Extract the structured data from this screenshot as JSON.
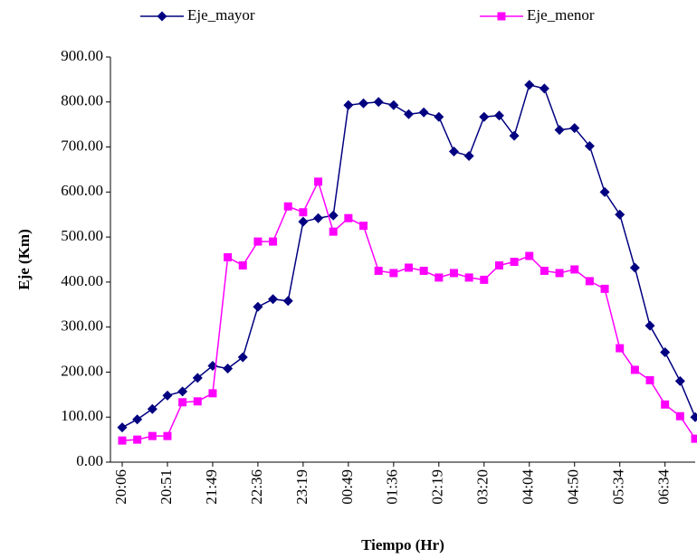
{
  "chart_data": {
    "type": "line",
    "y_label": "Eje (Km)",
    "x_label": "Tiempo (Hr)",
    "categories": [
      "20:06",
      null,
      null,
      "20:51",
      null,
      null,
      "21:49",
      null,
      null,
      "22:36",
      null,
      null,
      "23:19",
      null,
      null,
      "00:49",
      null,
      null,
      "01:36",
      null,
      null,
      "02:19",
      null,
      null,
      "03:20",
      null,
      null,
      "04:04",
      null,
      null,
      "04:50",
      null,
      null,
      "05:34",
      null,
      null,
      "06:34",
      null,
      null
    ],
    "series": [
      {
        "name": "Eje_mayor",
        "color": "#000080",
        "marker": "diamond",
        "values": [
          77,
          95,
          118,
          148,
          157,
          187,
          214,
          208,
          233,
          345,
          362,
          358,
          534,
          542,
          548,
          793,
          797,
          800,
          793,
          773,
          777,
          767,
          690,
          680,
          767,
          770,
          725,
          838,
          830,
          738,
          742,
          702,
          600,
          550,
          432,
          303,
          244,
          180,
          100
        ]
      },
      {
        "name": "Eje_menor",
        "color": "#FF00FF",
        "marker": "square",
        "values": [
          48,
          50,
          58,
          58,
          133,
          135,
          153,
          455,
          437,
          490,
          490,
          568,
          555,
          623,
          512,
          542,
          525,
          425,
          420,
          432,
          425,
          410,
          420,
          410,
          405,
          437,
          445,
          458,
          425,
          420,
          428,
          402,
          385,
          253,
          205,
          182,
          128,
          102,
          52
        ]
      }
    ],
    "ylim": [
      0,
      900
    ],
    "yticks": [
      {
        "value": 0,
        "label": "0.00"
      },
      {
        "value": 100,
        "label": "100.00"
      },
      {
        "value": 200,
        "label": "200.00"
      },
      {
        "value": 300,
        "label": "300.00"
      },
      {
        "value": 400,
        "label": "400.00"
      },
      {
        "value": 500,
        "label": "500.00"
      },
      {
        "value": 600,
        "label": "600.00"
      },
      {
        "value": 700,
        "label": "700.00"
      },
      {
        "value": 800,
        "label": "800.00"
      },
      {
        "value": 900,
        "label": "900.00"
      }
    ],
    "grid": false,
    "legend": "top"
  }
}
